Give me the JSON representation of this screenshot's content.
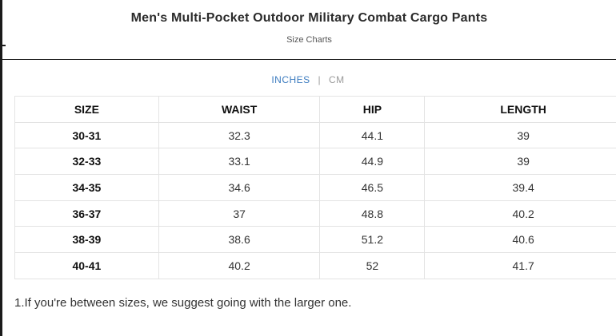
{
  "header": {
    "title": "Men's Multi-Pocket Outdoor Military Combat Cargo Pants",
    "subtitle": "Size Charts"
  },
  "units": {
    "active": "INCHES",
    "separator": "|",
    "inactive": "CM"
  },
  "table": {
    "columns": [
      "SIZE",
      "WAIST",
      "HIP",
      "LENGTH"
    ],
    "rows": [
      [
        "30-31",
        "32.3",
        "44.1",
        "39"
      ],
      [
        "32-33",
        "33.1",
        "44.9",
        "39"
      ],
      [
        "34-35",
        "34.6",
        "46.5",
        "39.4"
      ],
      [
        "36-37",
        "37",
        "48.8",
        "40.2"
      ],
      [
        "38-39",
        "38.6",
        "51.2",
        "40.6"
      ],
      [
        "40-41",
        "40.2",
        "52",
        "41.7"
      ]
    ]
  },
  "note": "1.If you're between sizes, we suggest going with the larger one.",
  "colors": {
    "accent": "#3b7bbf",
    "muted": "#9a9a9a",
    "border": "#e3e3e3"
  }
}
